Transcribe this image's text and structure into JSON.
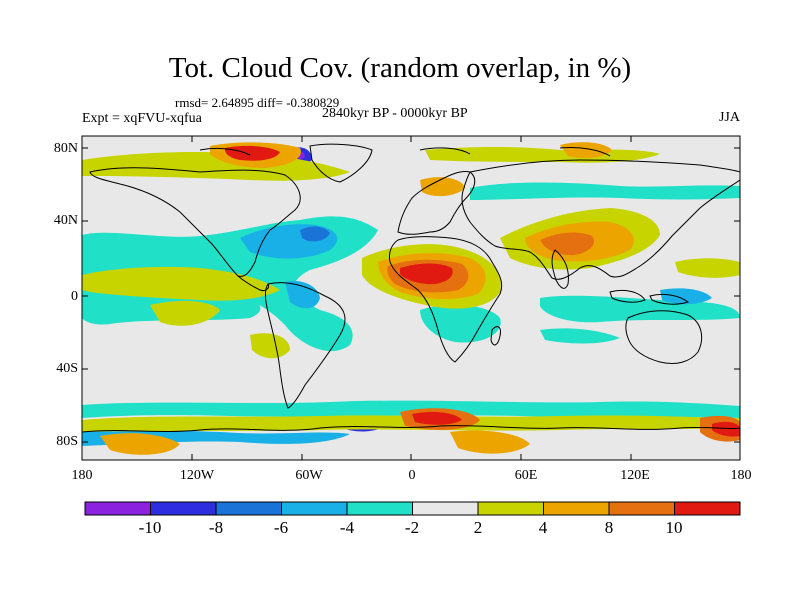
{
  "title": "Tot. Cloud Cov. (random overlap, in %)",
  "stats": "rmsd= 2.64895 diff= -0.380829",
  "period": "2840kyr BP - 0000kyr BP",
  "experiment": "Expt = xqFVU-xqfua",
  "season": "JJA",
  "map": {
    "lat_labels": [
      "80N",
      "40N",
      "0",
      "40S",
      "80S"
    ],
    "lon_labels": [
      "180",
      "120W",
      "60W",
      "0",
      "60E",
      "120E",
      "180"
    ],
    "background_color": "#e8e8e8"
  },
  "colorbar": {
    "labels": [
      "-10",
      "-8",
      "-6",
      "-4",
      "-2",
      "2",
      "4",
      "8",
      "10"
    ],
    "colors": [
      "#8a22e0",
      "#2e2ee0",
      "#1a74d8",
      "#18b0e6",
      "#20e0c8",
      "#e8e8e8",
      "#c8d400",
      "#eca400",
      "#e47010",
      "#e01a10"
    ]
  }
}
